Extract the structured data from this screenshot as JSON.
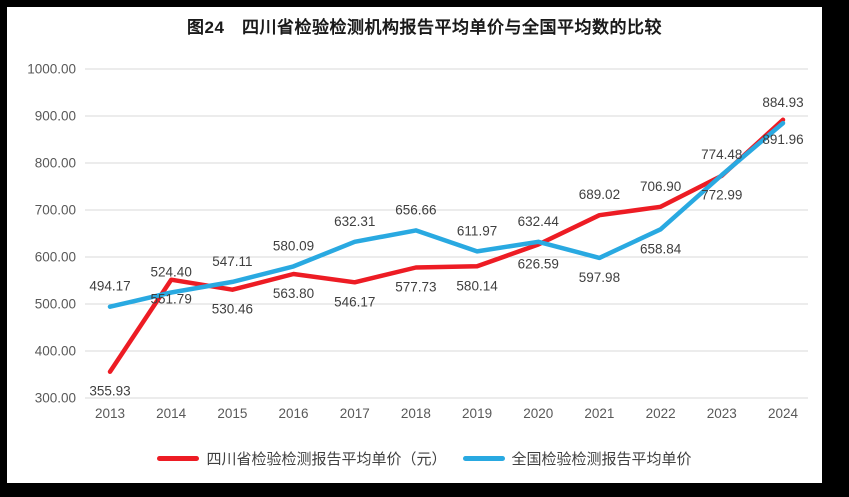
{
  "title": "图24　四川省检验检测机构报告平均单价与全国平均数的比较",
  "legend": {
    "items": [
      {
        "label": "四川省检验检测报告平均单价（元）",
        "color": "#ED1C24"
      },
      {
        "label": "全国检验检测报告平均单价",
        "color": "#29A9E1"
      }
    ]
  },
  "colors": {
    "sichuan_red": "#ED1C24",
    "national_blue": "#29A9E1",
    "gridline": "#D9D9D9",
    "axis_text": "#595959",
    "data_label_text": "#3F3F3F",
    "frame": "#000000",
    "background": "#FFFFFF"
  },
  "chart_data": {
    "type": "line",
    "title": "图24　四川省检验检测机构报告平均单价与全国平均数的比较",
    "categories": [
      "2013",
      "2014",
      "2015",
      "2016",
      "2017",
      "2018",
      "2019",
      "2020",
      "2021",
      "2022",
      "2023",
      "2024"
    ],
    "series": [
      {
        "name": "四川省检验检测报告平均单价（元）",
        "key": "sichuan",
        "color": "#ED1C24",
        "values": [
          355.93,
          551.79,
          530.46,
          563.8,
          546.17,
          577.73,
          580.14,
          626.59,
          689.02,
          706.9,
          772.99,
          891.96
        ],
        "label_side": [
          "below",
          "below",
          "below",
          "below",
          "below",
          "below",
          "below",
          "below",
          "above",
          "above",
          "below",
          "below"
        ]
      },
      {
        "name": "全国检验检测报告平均单价",
        "key": "national",
        "color": "#29A9E1",
        "values": [
          494.17,
          524.4,
          547.11,
          580.09,
          632.31,
          656.66,
          611.97,
          632.44,
          597.98,
          658.84,
          774.48,
          884.93
        ],
        "label_side": [
          "above",
          "above",
          "above",
          "above",
          "above",
          "above",
          "above",
          "above",
          "below",
          "below",
          "above",
          "above"
        ]
      }
    ],
    "ylim": [
      300,
      1000
    ],
    "y_tick_labels": [
      "1000.00",
      "900.00",
      "800.00",
      "700.00",
      "600.00",
      "500.00",
      "400.00",
      "300.00"
    ],
    "y_tick_values": [
      1000,
      900,
      800,
      700,
      600,
      500,
      400,
      300
    ],
    "grid": true,
    "legend_position": "bottom",
    "data_labels": true,
    "data_label_decimals": 2
  }
}
